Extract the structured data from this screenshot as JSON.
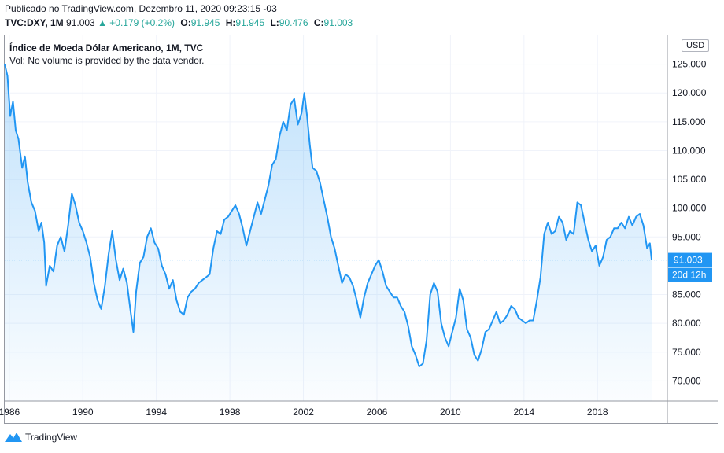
{
  "header": {
    "published": "Publicado no TradingView.com, Dezembro 11, 2020 09:23:15 -03",
    "symbol": "TVC:DXY, 1M",
    "last": "91.003",
    "change": "▲ +0.179 (+0.2%)",
    "o_label": "O:",
    "o_value": "91.945",
    "h_label": "H:",
    "h_value": "91.945",
    "l_label": "L:",
    "l_value": "90.476",
    "c_label": "C:",
    "c_value": "91.003"
  },
  "legend": {
    "title": "Índice de Moeda Dólar Americano, 1M, TVC",
    "volume": "Vol: No volume is provided by the data vendor."
  },
  "currency_button": "USD",
  "price_label": "91.003",
  "countdown_label": "20d 12h",
  "footer": {
    "brand": "TradingView"
  },
  "colors": {
    "line": "#2196f3",
    "fill": "#2196f3",
    "last_price_bg": "#2196f3",
    "up": "#26a69a"
  },
  "chart_data": {
    "type": "area",
    "x_ticks": [
      "1986",
      "1990",
      "1994",
      "1998",
      "2002",
      "2006",
      "2010",
      "2014",
      "2018"
    ],
    "y_ticks": [
      "70.000",
      "75.000",
      "80.000",
      "85.000",
      "95.000",
      "100.000",
      "105.000",
      "110.000",
      "115.000",
      "120.000",
      "125.000"
    ],
    "ylim": [
      66.5,
      130
    ],
    "xlim": [
      1985.75,
      2021.8
    ],
    "grid": true,
    "last_price": 91.003,
    "series": [
      {
        "points": [
          [
            1985.75,
            125.0
          ],
          [
            1985.9,
            123.0
          ],
          [
            1986.05,
            116.0
          ],
          [
            1986.2,
            118.5
          ],
          [
            1986.35,
            113.5
          ],
          [
            1986.5,
            112.0
          ],
          [
            1986.7,
            107.0
          ],
          [
            1986.85,
            109.0
          ],
          [
            1987.0,
            104.5
          ],
          [
            1987.2,
            101.0
          ],
          [
            1987.4,
            99.5
          ],
          [
            1987.6,
            96.0
          ],
          [
            1987.75,
            97.5
          ],
          [
            1987.9,
            94.0
          ],
          [
            1988.0,
            86.5
          ],
          [
            1988.2,
            90.0
          ],
          [
            1988.4,
            89.0
          ],
          [
            1988.6,
            93.5
          ],
          [
            1988.8,
            95.0
          ],
          [
            1989.0,
            92.5
          ],
          [
            1989.2,
            97.0
          ],
          [
            1989.4,
            102.5
          ],
          [
            1989.6,
            100.5
          ],
          [
            1989.8,
            97.5
          ],
          [
            1990.0,
            96.0
          ],
          [
            1990.2,
            94.0
          ],
          [
            1990.4,
            91.5
          ],
          [
            1990.6,
            87.0
          ],
          [
            1990.8,
            84.0
          ],
          [
            1991.0,
            82.5
          ],
          [
            1991.2,
            86.5
          ],
          [
            1991.4,
            92.0
          ],
          [
            1991.6,
            96.0
          ],
          [
            1991.8,
            91.0
          ],
          [
            1992.0,
            87.5
          ],
          [
            1992.2,
            89.5
          ],
          [
            1992.4,
            87.0
          ],
          [
            1992.6,
            82.0
          ],
          [
            1992.75,
            78.5
          ],
          [
            1992.9,
            85.5
          ],
          [
            1993.1,
            90.5
          ],
          [
            1993.3,
            91.5
          ],
          [
            1993.5,
            95.0
          ],
          [
            1993.7,
            96.5
          ],
          [
            1993.9,
            94.0
          ],
          [
            1994.1,
            93.0
          ],
          [
            1994.3,
            90.0
          ],
          [
            1994.5,
            88.5
          ],
          [
            1994.7,
            86.0
          ],
          [
            1994.9,
            87.5
          ],
          [
            1995.1,
            84.0
          ],
          [
            1995.3,
            82.0
          ],
          [
            1995.5,
            81.5
          ],
          [
            1995.7,
            84.5
          ],
          [
            1995.9,
            85.5
          ],
          [
            1996.1,
            86.0
          ],
          [
            1996.3,
            87.0
          ],
          [
            1996.5,
            87.5
          ],
          [
            1996.7,
            88.0
          ],
          [
            1996.9,
            88.5
          ],
          [
            1997.1,
            93.0
          ],
          [
            1997.3,
            96.0
          ],
          [
            1997.5,
            95.5
          ],
          [
            1997.7,
            98.0
          ],
          [
            1997.9,
            98.5
          ],
          [
            1998.1,
            99.5
          ],
          [
            1998.3,
            100.5
          ],
          [
            1998.5,
            99.0
          ],
          [
            1998.7,
            96.5
          ],
          [
            1998.9,
            93.5
          ],
          [
            1999.1,
            96.0
          ],
          [
            1999.3,
            98.5
          ],
          [
            1999.5,
            101.0
          ],
          [
            1999.7,
            99.0
          ],
          [
            1999.9,
            101.5
          ],
          [
            2000.1,
            104.0
          ],
          [
            2000.3,
            107.5
          ],
          [
            2000.5,
            108.5
          ],
          [
            2000.7,
            112.5
          ],
          [
            2000.9,
            115.0
          ],
          [
            2001.1,
            113.5
          ],
          [
            2001.3,
            118.0
          ],
          [
            2001.5,
            119.0
          ],
          [
            2001.7,
            114.5
          ],
          [
            2001.9,
            116.5
          ],
          [
            2002.05,
            120.0
          ],
          [
            2002.2,
            116.0
          ],
          [
            2002.35,
            111.0
          ],
          [
            2002.5,
            107.0
          ],
          [
            2002.7,
            106.5
          ],
          [
            2002.9,
            104.5
          ],
          [
            2003.1,
            101.5
          ],
          [
            2003.3,
            98.5
          ],
          [
            2003.5,
            95.0
          ],
          [
            2003.7,
            93.0
          ],
          [
            2003.9,
            90.0
          ],
          [
            2004.1,
            87.0
          ],
          [
            2004.3,
            88.5
          ],
          [
            2004.5,
            88.0
          ],
          [
            2004.7,
            86.5
          ],
          [
            2004.9,
            84.0
          ],
          [
            2005.1,
            81.0
          ],
          [
            2005.3,
            84.5
          ],
          [
            2005.5,
            87.0
          ],
          [
            2005.7,
            88.5
          ],
          [
            2005.9,
            90.0
          ],
          [
            2006.1,
            91.0
          ],
          [
            2006.3,
            89.0
          ],
          [
            2006.5,
            86.5
          ],
          [
            2006.7,
            85.5
          ],
          [
            2006.9,
            84.5
          ],
          [
            2007.1,
            84.5
          ],
          [
            2007.3,
            83.0
          ],
          [
            2007.5,
            82.0
          ],
          [
            2007.7,
            79.5
          ],
          [
            2007.9,
            76.0
          ],
          [
            2008.1,
            74.5
          ],
          [
            2008.3,
            72.5
          ],
          [
            2008.5,
            73.0
          ],
          [
            2008.7,
            77.0
          ],
          [
            2008.9,
            85.0
          ],
          [
            2009.1,
            87.0
          ],
          [
            2009.3,
            85.5
          ],
          [
            2009.5,
            80.0
          ],
          [
            2009.7,
            77.5
          ],
          [
            2009.9,
            76.0
          ],
          [
            2010.1,
            78.5
          ],
          [
            2010.3,
            81.0
          ],
          [
            2010.5,
            86.0
          ],
          [
            2010.7,
            84.0
          ],
          [
            2010.9,
            79.0
          ],
          [
            2011.1,
            77.5
          ],
          [
            2011.3,
            74.5
          ],
          [
            2011.5,
            73.5
          ],
          [
            2011.7,
            75.5
          ],
          [
            2011.9,
            78.5
          ],
          [
            2012.1,
            79.0
          ],
          [
            2012.3,
            80.5
          ],
          [
            2012.5,
            82.0
          ],
          [
            2012.7,
            80.0
          ],
          [
            2012.9,
            80.5
          ],
          [
            2013.1,
            81.5
          ],
          [
            2013.3,
            83.0
          ],
          [
            2013.5,
            82.5
          ],
          [
            2013.7,
            81.0
          ],
          [
            2013.9,
            80.5
          ],
          [
            2014.1,
            80.0
          ],
          [
            2014.3,
            80.5
          ],
          [
            2014.5,
            80.5
          ],
          [
            2014.7,
            84.0
          ],
          [
            2014.9,
            88.0
          ],
          [
            2015.1,
            95.5
          ],
          [
            2015.3,
            97.5
          ],
          [
            2015.5,
            95.5
          ],
          [
            2015.7,
            96.0
          ],
          [
            2015.9,
            98.5
          ],
          [
            2016.1,
            97.5
          ],
          [
            2016.3,
            94.5
          ],
          [
            2016.5,
            96.0
          ],
          [
            2016.7,
            95.5
          ],
          [
            2016.9,
            101.0
          ],
          [
            2017.1,
            100.5
          ],
          [
            2017.3,
            97.5
          ],
          [
            2017.5,
            94.5
          ],
          [
            2017.7,
            92.5
          ],
          [
            2017.9,
            93.5
          ],
          [
            2018.1,
            90.0
          ],
          [
            2018.3,
            91.5
          ],
          [
            2018.5,
            94.5
          ],
          [
            2018.7,
            95.0
          ],
          [
            2018.9,
            96.5
          ],
          [
            2019.1,
            96.5
          ],
          [
            2019.3,
            97.5
          ],
          [
            2019.5,
            96.5
          ],
          [
            2019.7,
            98.5
          ],
          [
            2019.9,
            97.0
          ],
          [
            2020.1,
            98.5
          ],
          [
            2020.3,
            99.0
          ],
          [
            2020.5,
            97.0
          ],
          [
            2020.7,
            93.0
          ],
          [
            2020.85,
            93.9
          ],
          [
            2020.95,
            91.003
          ]
        ]
      }
    ]
  }
}
